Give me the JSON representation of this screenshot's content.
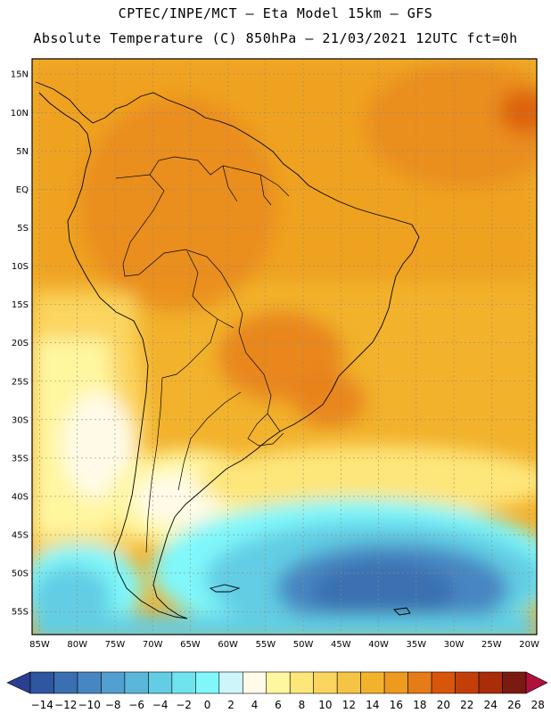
{
  "header": {
    "line1": "CPTEC/INPE/MCT –  Eta Model 15km – GFS",
    "line2": "Absolute Temperature (C) 850hPa – 21/03/2021 12UTC fct=0h"
  },
  "map": {
    "lon_range": [
      -86,
      -19
    ],
    "lat_range": [
      -58,
      17
    ],
    "lat_labels": [
      "15N",
      "10N",
      "5N",
      "EQ",
      "5S",
      "10S",
      "15S",
      "20S",
      "25S",
      "30S",
      "35S",
      "40S",
      "45S",
      "50S",
      "55S"
    ],
    "lon_labels": [
      "85W",
      "80W",
      "75W",
      "70W",
      "65W",
      "60W",
      "55W",
      "50W",
      "45W",
      "40W",
      "35W",
      "30W",
      "25W",
      "20W"
    ]
  },
  "colorbar": {
    "labels": [
      "-14",
      "-12",
      "-10",
      "-8",
      "-6",
      "-4",
      "-2",
      "0",
      "2",
      "4",
      "6",
      "8",
      "10",
      "12",
      "14",
      "16",
      "18",
      "20",
      "22",
      "24",
      "26",
      "28"
    ],
    "colors": [
      "#2a3f8f",
      "#2f56a0",
      "#3a6fb1",
      "#4686c2",
      "#52a0cf",
      "#5ab7da",
      "#62cde4",
      "#6fe3ee",
      "#7ff7fb",
      "#cdf6fb",
      "#fffbe8",
      "#fff6a0",
      "#fde67a",
      "#fbd560",
      "#f6c445",
      "#f2b22c",
      "#ee9a1e",
      "#e67c16",
      "#d8560c",
      "#c43f08",
      "#a82d08",
      "#7a1a10",
      "#b0103a"
    ]
  }
}
